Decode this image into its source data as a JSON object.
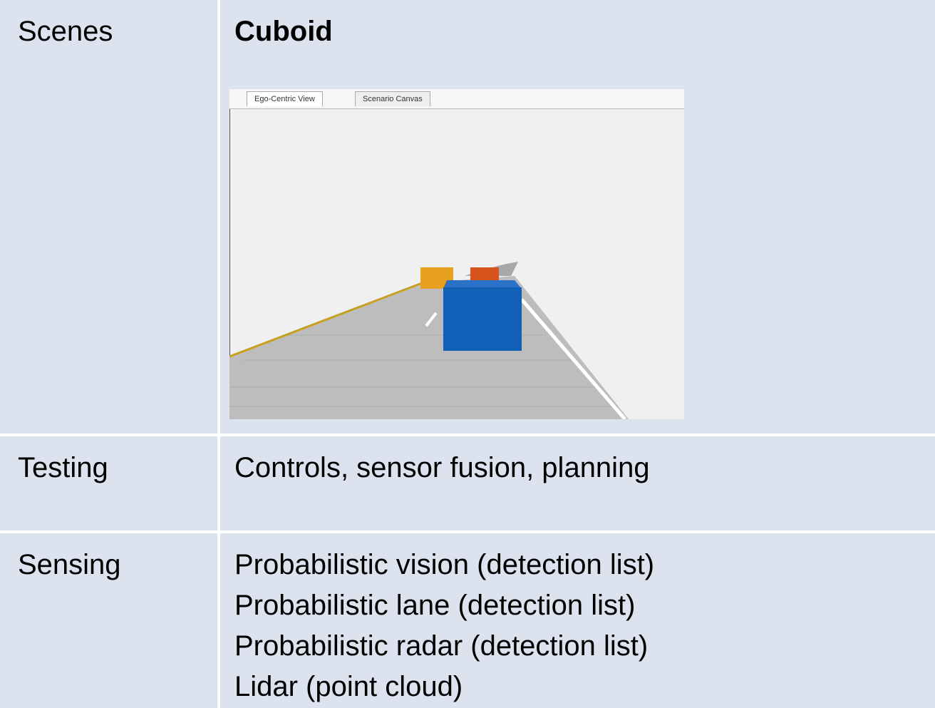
{
  "table": {
    "rows": [
      {
        "label": "Scenes",
        "title": "Cuboid",
        "screenshot": {
          "tabs": [
            "Ego-Centric View",
            "Scenario Canvas"
          ]
        }
      },
      {
        "label": "Testing",
        "text": "Controls, sensor fusion, planning"
      },
      {
        "label": "Sensing",
        "lines": [
          "Probabilistic vision (detection list)",
          "Probabilistic lane (detection list)",
          "Probabilistic radar (detection list)",
          "Lidar (point cloud)"
        ]
      }
    ]
  }
}
